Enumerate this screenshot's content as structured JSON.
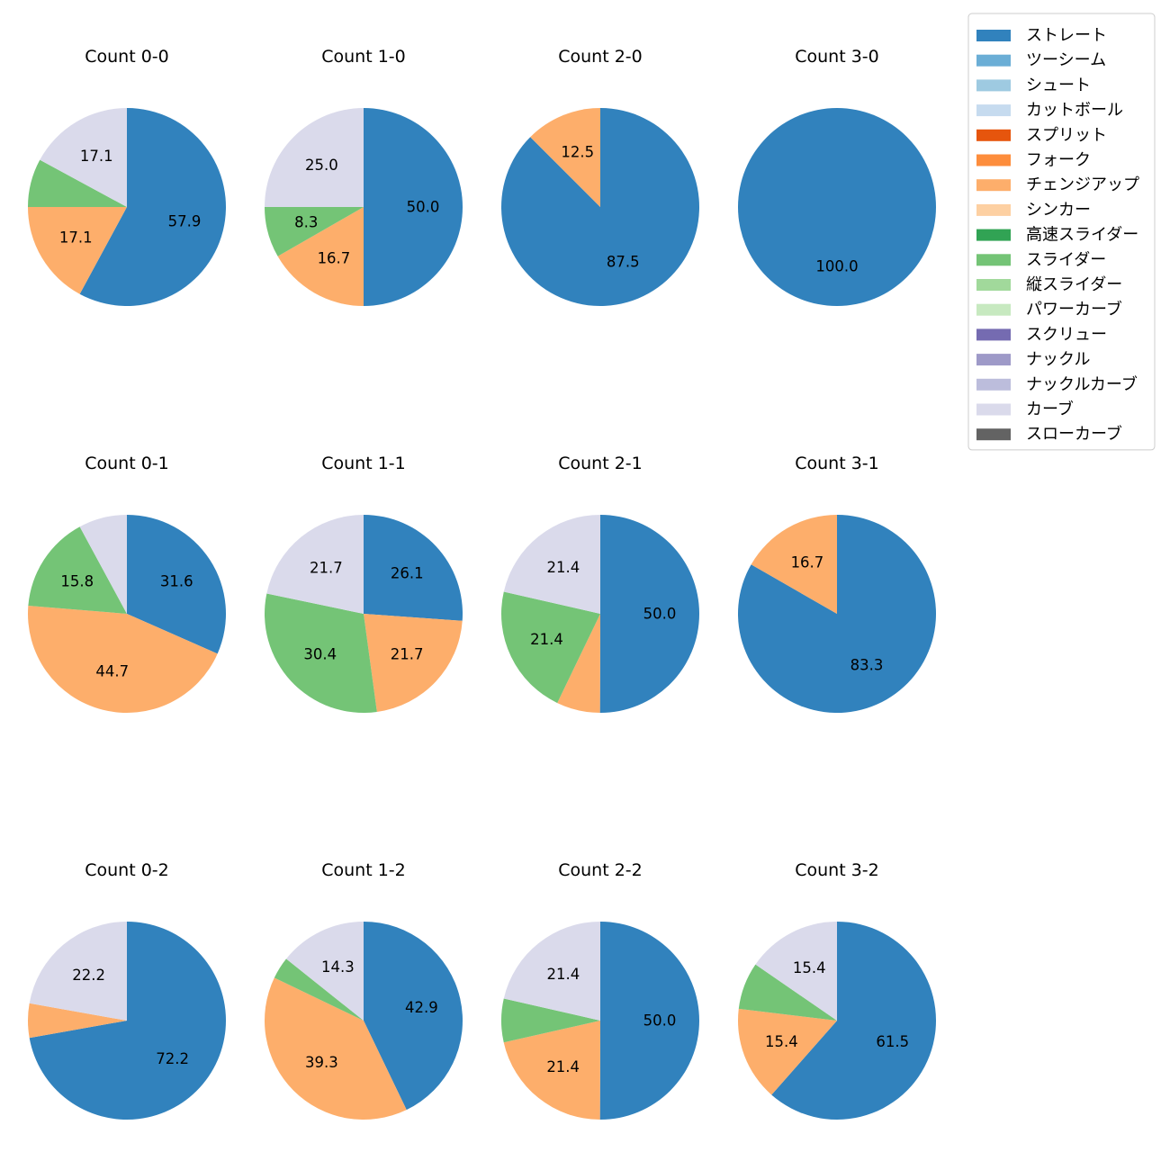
{
  "colors": {
    "ストレート": "#3182bd",
    "ツーシーム": "#6baed6",
    "シュート": "#9ecae1",
    "カットボール": "#c6dbef",
    "スプリット": "#e6550d",
    "フォーク": "#fd8d3c",
    "チェンジアップ": "#fdae6b",
    "シンカー": "#fdd0a2",
    "高速スライダー": "#31a354",
    "スライダー": "#74c476",
    "縦スライダー": "#a1d99b",
    "パワーカーブ": "#c7e9c0",
    "スクリュー": "#756bb1",
    "ナックル": "#9e9ac8",
    "ナックルカーブ": "#bcbddc",
    "カーブ": "#dadaeb",
    "スローカーブ": "#636363"
  },
  "legend": {
    "items": [
      "ストレート",
      "ツーシーム",
      "シュート",
      "カットボール",
      "スプリット",
      "フォーク",
      "チェンジアップ",
      "シンカー",
      "高速スライダー",
      "スライダー",
      "縦スライダー",
      "パワーカーブ",
      "スクリュー",
      "ナックル",
      "ナックルカーブ",
      "カーブ",
      "スローカーブ"
    ]
  },
  "chart_data": [
    {
      "type": "pie",
      "title": "Count 0-0",
      "labels": [
        "ストレート",
        "チェンジアップ",
        "スライダー",
        "カーブ"
      ],
      "values": [
        57.9,
        17.1,
        7.9,
        17.1
      ],
      "value_labels": [
        "57.9",
        "17.1",
        "",
        "17.1"
      ]
    },
    {
      "type": "pie",
      "title": "Count 1-0",
      "labels": [
        "ストレート",
        "チェンジアップ",
        "スライダー",
        "カーブ"
      ],
      "values": [
        50.0,
        16.7,
        8.3,
        25.0
      ],
      "value_labels": [
        "50.0",
        "16.7",
        "8.3",
        "25.0"
      ]
    },
    {
      "type": "pie",
      "title": "Count 2-0",
      "labels": [
        "ストレート",
        "チェンジアップ"
      ],
      "values": [
        87.5,
        12.5
      ],
      "value_labels": [
        "87.5",
        "12.5"
      ]
    },
    {
      "type": "pie",
      "title": "Count 3-0",
      "labels": [
        "ストレート"
      ],
      "values": [
        100.0
      ],
      "value_labels": [
        "100.0"
      ]
    },
    {
      "type": "pie",
      "title": "Count 0-1",
      "labels": [
        "ストレート",
        "チェンジアップ",
        "スライダー",
        "カーブ"
      ],
      "values": [
        31.6,
        44.7,
        15.8,
        7.9
      ],
      "value_labels": [
        "31.6",
        "44.7",
        "15.8",
        ""
      ]
    },
    {
      "type": "pie",
      "title": "Count 1-1",
      "labels": [
        "ストレート",
        "チェンジアップ",
        "スライダー",
        "カーブ"
      ],
      "values": [
        26.1,
        21.7,
        30.4,
        21.7
      ],
      "value_labels": [
        "26.1",
        "21.7",
        "30.4",
        "21.7"
      ]
    },
    {
      "type": "pie",
      "title": "Count 2-1",
      "labels": [
        "ストレート",
        "チェンジアップ",
        "スライダー",
        "カーブ"
      ],
      "values": [
        50.0,
        7.1,
        21.4,
        21.4
      ],
      "value_labels": [
        "50.0",
        "",
        "21.4",
        "21.4"
      ]
    },
    {
      "type": "pie",
      "title": "Count 3-1",
      "labels": [
        "ストレート",
        "チェンジアップ"
      ],
      "values": [
        83.3,
        16.7
      ],
      "value_labels": [
        "83.3",
        "16.7"
      ]
    },
    {
      "type": "pie",
      "title": "Count 0-2",
      "labels": [
        "ストレート",
        "チェンジアップ",
        "カーブ"
      ],
      "values": [
        72.2,
        5.6,
        22.2
      ],
      "value_labels": [
        "72.2",
        "",
        "22.2"
      ]
    },
    {
      "type": "pie",
      "title": "Count 1-2",
      "labels": [
        "ストレート",
        "チェンジアップ",
        "スライダー",
        "カーブ"
      ],
      "values": [
        42.9,
        39.3,
        3.6,
        14.3
      ],
      "value_labels": [
        "42.9",
        "39.3",
        "",
        "14.3"
      ]
    },
    {
      "type": "pie",
      "title": "Count 2-2",
      "labels": [
        "ストレート",
        "チェンジアップ",
        "スライダー",
        "カーブ"
      ],
      "values": [
        50.0,
        21.4,
        7.1,
        21.4
      ],
      "value_labels": [
        "50.0",
        "21.4",
        "",
        "21.4"
      ]
    },
    {
      "type": "pie",
      "title": "Count 3-2",
      "labels": [
        "ストレート",
        "チェンジアップ",
        "スライダー",
        "カーブ"
      ],
      "values": [
        61.5,
        15.4,
        7.7,
        15.4
      ],
      "value_labels": [
        "61.5",
        "15.4",
        "",
        "15.4"
      ]
    }
  ]
}
